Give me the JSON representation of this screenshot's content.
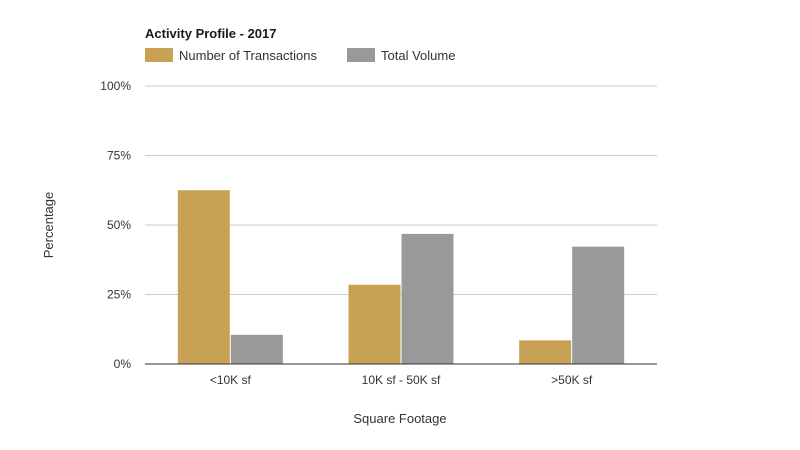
{
  "chart_data": {
    "type": "bar",
    "title": "Activity Profile - 2017",
    "xlabel": "Square Footage",
    "ylabel": "Percentage",
    "categories": [
      "<10K sf",
      "10K sf - 50K sf",
      ">50K sf"
    ],
    "series": [
      {
        "name": "Number of Transactions",
        "color": "#c9a155",
        "values": [
          62.5,
          28.5,
          8.5
        ]
      },
      {
        "name": "Total Volume",
        "color": "#999999",
        "values": [
          10.5,
          46.8,
          42.2
        ]
      }
    ],
    "ylim": [
      0,
      100
    ],
    "yticks": [
      0,
      25,
      50,
      75,
      100
    ],
    "ytick_labels": [
      "0%",
      "25%",
      "50%",
      "75%",
      "100%"
    ],
    "grid": true,
    "legend_position": "top-left"
  }
}
